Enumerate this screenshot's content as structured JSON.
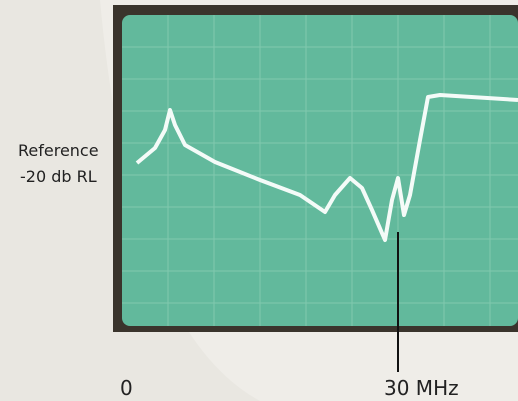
{
  "annotations": {
    "reference": "Reference",
    "level": "-20 db RL",
    "start": "0",
    "end": "30 MHz"
  }
}
